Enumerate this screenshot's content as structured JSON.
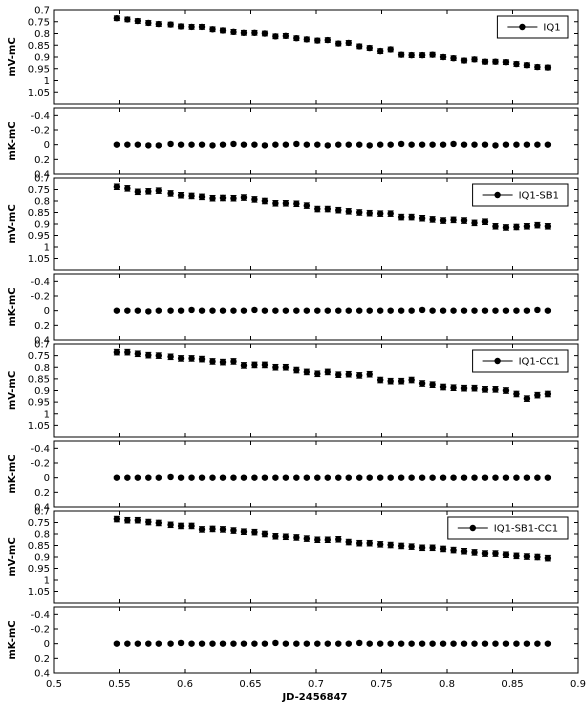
{
  "figure": {
    "xlabel": "JD-2456847"
  },
  "chart_data": [
    {
      "type": "scatter",
      "title": "",
      "xlabel": "",
      "ylabel": "mV-mC",
      "ylim": [
        1.1,
        0.7
      ],
      "yticks": [
        "0.7",
        "0.75",
        "0.8",
        "0.85",
        "0.9",
        "0.95",
        "1",
        "1.05"
      ],
      "legend": "IQ1",
      "legend_position": "top-right",
      "x": [
        0.548,
        0.556,
        0.564,
        0.572,
        0.58,
        0.589,
        0.597,
        0.605,
        0.613,
        0.621,
        0.629,
        0.637,
        0.645,
        0.653,
        0.661,
        0.669,
        0.677,
        0.685,
        0.693,
        0.701,
        0.709,
        0.717,
        0.725,
        0.733,
        0.741,
        0.749,
        0.757,
        0.765,
        0.773,
        0.781,
        0.789,
        0.797,
        0.805,
        0.813,
        0.821,
        0.829,
        0.837,
        0.845,
        0.853,
        0.861,
        0.869,
        0.877
      ],
      "y": [
        0.735,
        0.74,
        0.747,
        0.755,
        0.76,
        0.762,
        0.77,
        0.772,
        0.772,
        0.782,
        0.787,
        0.793,
        0.797,
        0.797,
        0.8,
        0.812,
        0.81,
        0.82,
        0.825,
        0.83,
        0.828,
        0.843,
        0.84,
        0.855,
        0.862,
        0.875,
        0.868,
        0.89,
        0.892,
        0.892,
        0.89,
        0.9,
        0.905,
        0.915,
        0.91,
        0.92,
        0.92,
        0.922,
        0.93,
        0.935,
        0.943,
        0.945
      ],
      "err": 0.01
    },
    {
      "type": "scatter",
      "title": "",
      "xlabel": "",
      "ylabel": "mK-mC",
      "ylim": [
        0.4,
        -0.5
      ],
      "yticks": [
        "-0.4",
        "-0.2",
        "0",
        "0.2",
        "0.4"
      ],
      "x": [
        0.548,
        0.556,
        0.564,
        0.572,
        0.58,
        0.589,
        0.597,
        0.605,
        0.613,
        0.621,
        0.629,
        0.637,
        0.645,
        0.653,
        0.661,
        0.669,
        0.677,
        0.685,
        0.693,
        0.701,
        0.709,
        0.717,
        0.725,
        0.733,
        0.741,
        0.749,
        0.757,
        0.765,
        0.773,
        0.781,
        0.789,
        0.797,
        0.805,
        0.813,
        0.821,
        0.829,
        0.837,
        0.845,
        0.853,
        0.861,
        0.869,
        0.877
      ],
      "y": [
        0,
        0,
        0,
        0.01,
        0.01,
        -0.01,
        0,
        0,
        0,
        0.01,
        0,
        -0.01,
        0,
        0,
        0.01,
        0,
        0,
        -0.01,
        0,
        0,
        0.01,
        0,
        0,
        0,
        0.01,
        0,
        0,
        -0.01,
        0,
        0,
        0,
        0,
        -0.01,
        0,
        0,
        0,
        0.01,
        0,
        0,
        0,
        0,
        0
      ],
      "err": 0.015
    },
    {
      "type": "scatter",
      "title": "",
      "xlabel": "",
      "ylabel": "mV-mC",
      "ylim": [
        1.1,
        0.7
      ],
      "yticks": [
        "0.7",
        "0.75",
        "0.8",
        "0.85",
        "0.9",
        "0.95",
        "1",
        "1.05"
      ],
      "legend": "IQ1-SB1",
      "legend_position": "top-right",
      "x": [
        0.548,
        0.556,
        0.564,
        0.572,
        0.58,
        0.589,
        0.597,
        0.605,
        0.613,
        0.621,
        0.629,
        0.637,
        0.645,
        0.653,
        0.661,
        0.669,
        0.677,
        0.685,
        0.693,
        0.701,
        0.709,
        0.717,
        0.725,
        0.733,
        0.741,
        0.749,
        0.757,
        0.765,
        0.773,
        0.781,
        0.789,
        0.797,
        0.805,
        0.813,
        0.821,
        0.829,
        0.837,
        0.845,
        0.853,
        0.861,
        0.869,
        0.877
      ],
      "y": [
        0.738,
        0.745,
        0.76,
        0.758,
        0.755,
        0.767,
        0.775,
        0.778,
        0.782,
        0.788,
        0.787,
        0.788,
        0.785,
        0.793,
        0.8,
        0.81,
        0.81,
        0.812,
        0.82,
        0.835,
        0.835,
        0.84,
        0.845,
        0.85,
        0.853,
        0.855,
        0.855,
        0.87,
        0.87,
        0.875,
        0.88,
        0.885,
        0.882,
        0.885,
        0.895,
        0.89,
        0.91,
        0.915,
        0.913,
        0.91,
        0.905,
        0.91
      ],
      "err": 0.012
    },
    {
      "type": "scatter",
      "title": "",
      "xlabel": "",
      "ylabel": "mK-mC",
      "ylim": [
        0.4,
        -0.5
      ],
      "yticks": [
        "-0.4",
        "-0.2",
        "0",
        "0.2",
        "0.4"
      ],
      "x": [
        0.548,
        0.556,
        0.564,
        0.572,
        0.58,
        0.589,
        0.597,
        0.605,
        0.613,
        0.621,
        0.629,
        0.637,
        0.645,
        0.653,
        0.661,
        0.669,
        0.677,
        0.685,
        0.693,
        0.701,
        0.709,
        0.717,
        0.725,
        0.733,
        0.741,
        0.749,
        0.757,
        0.765,
        0.773,
        0.781,
        0.789,
        0.797,
        0.805,
        0.813,
        0.821,
        0.829,
        0.837,
        0.845,
        0.853,
        0.861,
        0.869,
        0.877
      ],
      "y": [
        0,
        0,
        0,
        0.01,
        0,
        0,
        0,
        -0.01,
        0,
        0,
        0,
        0,
        0,
        -0.01,
        0,
        0,
        0,
        0,
        0,
        0,
        0,
        0,
        0,
        0,
        0,
        0,
        0,
        0,
        0,
        -0.01,
        0,
        0,
        0,
        0,
        0,
        0,
        0,
        0,
        0,
        0,
        -0.01,
        0
      ],
      "err": 0.015
    },
    {
      "type": "scatter",
      "title": "",
      "xlabel": "",
      "ylabel": "mV-mC",
      "ylim": [
        1.1,
        0.7
      ],
      "yticks": [
        "0.7",
        "0.75",
        "0.8",
        "0.85",
        "0.9",
        "0.95",
        "1",
        "1.05"
      ],
      "legend": "IQ1-CC1",
      "legend_position": "top-right",
      "x": [
        0.548,
        0.556,
        0.564,
        0.572,
        0.58,
        0.589,
        0.597,
        0.605,
        0.613,
        0.621,
        0.629,
        0.637,
        0.645,
        0.653,
        0.661,
        0.669,
        0.677,
        0.685,
        0.693,
        0.701,
        0.709,
        0.717,
        0.725,
        0.733,
        0.741,
        0.749,
        0.757,
        0.765,
        0.773,
        0.781,
        0.789,
        0.797,
        0.805,
        0.813,
        0.821,
        0.829,
        0.837,
        0.845,
        0.853,
        0.861,
        0.869,
        0.877
      ],
      "y": [
        0.735,
        0.735,
        0.742,
        0.748,
        0.75,
        0.755,
        0.762,
        0.762,
        0.765,
        0.775,
        0.778,
        0.775,
        0.792,
        0.79,
        0.79,
        0.8,
        0.8,
        0.812,
        0.82,
        0.828,
        0.82,
        0.832,
        0.83,
        0.835,
        0.83,
        0.855,
        0.86,
        0.86,
        0.855,
        0.87,
        0.875,
        0.885,
        0.888,
        0.89,
        0.89,
        0.895,
        0.895,
        0.9,
        0.915,
        0.935,
        0.92,
        0.915
      ],
      "err": 0.012
    },
    {
      "type": "scatter",
      "title": "",
      "xlabel": "",
      "ylabel": "mK-mC",
      "ylim": [
        0.4,
        -0.5
      ],
      "yticks": [
        "-0.4",
        "-0.2",
        "0",
        "0.2",
        "0.4"
      ],
      "x": [
        0.548,
        0.556,
        0.564,
        0.572,
        0.58,
        0.589,
        0.597,
        0.605,
        0.613,
        0.621,
        0.629,
        0.637,
        0.645,
        0.653,
        0.661,
        0.669,
        0.677,
        0.685,
        0.693,
        0.701,
        0.709,
        0.717,
        0.725,
        0.733,
        0.741,
        0.749,
        0.757,
        0.765,
        0.773,
        0.781,
        0.789,
        0.797,
        0.805,
        0.813,
        0.821,
        0.829,
        0.837,
        0.845,
        0.853,
        0.861,
        0.869,
        0.877
      ],
      "y": [
        0,
        0,
        0,
        0,
        0,
        -0.01,
        0,
        0,
        0,
        0,
        0,
        0,
        0,
        0,
        0,
        0,
        0,
        0,
        0,
        0,
        0,
        0,
        0,
        0,
        0,
        0,
        0,
        0,
        0,
        0,
        0,
        0,
        0,
        0,
        0,
        0,
        0,
        0,
        0,
        0,
        0,
        0
      ],
      "err": 0.015
    },
    {
      "type": "scatter",
      "title": "",
      "xlabel": "",
      "ylabel": "mV-mC",
      "ylim": [
        1.1,
        0.7
      ],
      "yticks": [
        "0.7",
        "0.75",
        "0.8",
        "0.85",
        "0.9",
        "0.95",
        "1",
        "1.05"
      ],
      "legend": "IQ1-SB1-CC1",
      "legend_position": "top-right",
      "x": [
        0.548,
        0.556,
        0.564,
        0.572,
        0.58,
        0.589,
        0.597,
        0.605,
        0.613,
        0.621,
        0.629,
        0.637,
        0.645,
        0.653,
        0.661,
        0.669,
        0.677,
        0.685,
        0.693,
        0.701,
        0.709,
        0.717,
        0.725,
        0.733,
        0.741,
        0.749,
        0.757,
        0.765,
        0.773,
        0.781,
        0.789,
        0.797,
        0.805,
        0.813,
        0.821,
        0.829,
        0.837,
        0.845,
        0.853,
        0.861,
        0.869,
        0.877
      ],
      "y": [
        0.735,
        0.74,
        0.74,
        0.748,
        0.752,
        0.76,
        0.765,
        0.765,
        0.78,
        0.778,
        0.78,
        0.785,
        0.79,
        0.792,
        0.8,
        0.81,
        0.812,
        0.815,
        0.82,
        0.825,
        0.825,
        0.823,
        0.835,
        0.84,
        0.84,
        0.845,
        0.848,
        0.852,
        0.855,
        0.86,
        0.86,
        0.865,
        0.87,
        0.875,
        0.88,
        0.885,
        0.885,
        0.89,
        0.895,
        0.898,
        0.9,
        0.905
      ],
      "err": 0.012
    },
    {
      "type": "scatter",
      "title": "",
      "xlabel": "",
      "ylabel": "mK-mC",
      "ylim": [
        0.4,
        -0.5
      ],
      "yticks": [
        "-0.4",
        "-0.2",
        "0",
        "0.2",
        "0.4"
      ],
      "x": [
        0.548,
        0.556,
        0.564,
        0.572,
        0.58,
        0.589,
        0.597,
        0.605,
        0.613,
        0.621,
        0.629,
        0.637,
        0.645,
        0.653,
        0.661,
        0.669,
        0.677,
        0.685,
        0.693,
        0.701,
        0.709,
        0.717,
        0.725,
        0.733,
        0.741,
        0.749,
        0.757,
        0.765,
        0.773,
        0.781,
        0.789,
        0.797,
        0.805,
        0.813,
        0.821,
        0.829,
        0.837,
        0.845,
        0.853,
        0.861,
        0.869,
        0.877
      ],
      "y": [
        0,
        0,
        0,
        0,
        0,
        0,
        -0.01,
        0,
        0,
        0,
        0,
        0,
        0,
        0,
        0,
        -0.01,
        0,
        0,
        0,
        0,
        0,
        0,
        0,
        -0.01,
        0,
        0,
        0,
        0,
        0,
        0,
        0,
        0,
        0,
        0,
        0,
        0,
        0,
        0,
        0,
        0,
        0,
        0
      ],
      "err": 0.015
    }
  ],
  "x_axis": {
    "range": [
      0.5,
      0.9
    ],
    "ticks": [
      "0.5",
      "0.55",
      "0.6",
      "0.65",
      "0.7",
      "0.75",
      "0.8",
      "0.85",
      "0.9"
    ]
  },
  "colors": {
    "marker": "#000000",
    "axis": "#000000",
    "background": "#ffffff"
  }
}
